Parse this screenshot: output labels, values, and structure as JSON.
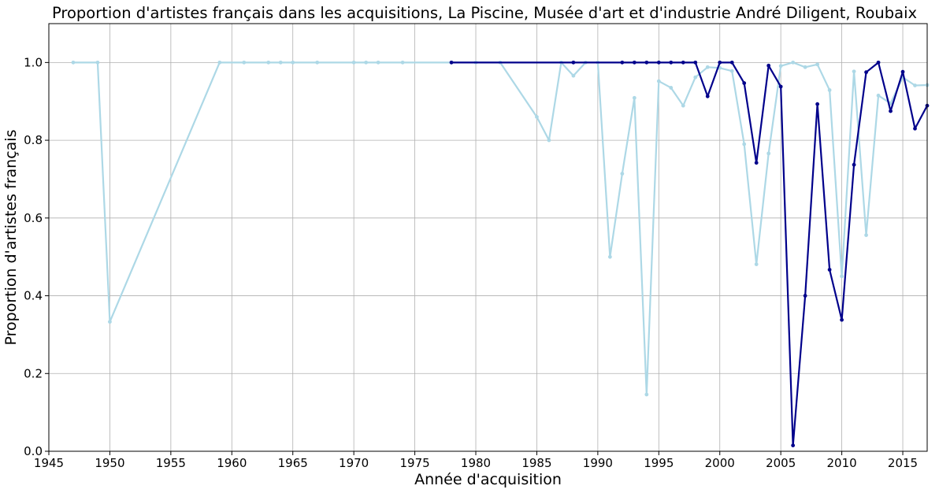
{
  "chart_data": {
    "type": "line",
    "title": "Proportion d'artistes français dans les acquisitions, La Piscine, Musée d'art et d'industrie André Diligent, Roubaix",
    "xlabel": "Année d'acquisition",
    "ylabel": "Proportion d'artistes français",
    "xlim": [
      1945,
      2017
    ],
    "ylim": [
      0,
      1.1
    ],
    "xticks": [
      "1945",
      "1950",
      "1955",
      "1960",
      "1965",
      "1970",
      "1975",
      "1980",
      "1985",
      "1990",
      "1995",
      "2000",
      "2005",
      "2010",
      "2015"
    ],
    "yticks": [
      "0.0",
      "0.2",
      "0.4",
      "0.6",
      "0.8",
      "1.0"
    ],
    "grid": true,
    "series": [
      {
        "color": "#add8e6",
        "points": [
          [
            1947,
            1.0
          ],
          [
            1949,
            1.0
          ],
          [
            1950,
            0.333
          ],
          [
            1959,
            1.0
          ],
          [
            1961,
            1.0
          ],
          [
            1963,
            1.0
          ],
          [
            1964,
            1.0
          ],
          [
            1965,
            1.0
          ],
          [
            1967,
            1.0
          ],
          [
            1970,
            1.0
          ],
          [
            1971,
            1.0
          ],
          [
            1972,
            1.0
          ],
          [
            1974,
            1.0
          ],
          [
            1978,
            1.0
          ],
          [
            1980,
            1.0
          ],
          [
            1982,
            1.0
          ],
          [
            1985,
            0.86
          ],
          [
            1986,
            0.8
          ],
          [
            1987,
            1.0
          ],
          [
            1988,
            0.966
          ],
          [
            1989,
            1.0
          ],
          [
            1990,
            1.0
          ],
          [
            1991,
            0.5
          ],
          [
            1992,
            0.714
          ],
          [
            1993,
            0.909
          ],
          [
            1994,
            0.146
          ],
          [
            1995,
            0.952
          ],
          [
            1996,
            0.935
          ],
          [
            1997,
            0.889
          ],
          [
            1998,
            0.962
          ],
          [
            1999,
            0.988
          ],
          [
            2000,
            0.986
          ],
          [
            2001,
            0.978
          ],
          [
            2002,
            0.79
          ],
          [
            2003,
            0.481
          ],
          [
            2004,
            0.766
          ],
          [
            2005,
            0.991
          ],
          [
            2006,
            1.0
          ],
          [
            2007,
            0.988
          ],
          [
            2008,
            0.995
          ],
          [
            2009,
            0.929
          ],
          [
            2010,
            0.45
          ],
          [
            2011,
            0.977
          ],
          [
            2012,
            0.556
          ],
          [
            2013,
            0.915
          ],
          [
            2014,
            0.895
          ],
          [
            2015,
            0.962
          ],
          [
            2016,
            0.941
          ],
          [
            2017,
            0.942
          ]
        ]
      },
      {
        "color": "#00008b",
        "points": [
          [
            1978,
            1.0
          ],
          [
            1988,
            1.0
          ],
          [
            1992,
            1.0
          ],
          [
            1993,
            1.0
          ],
          [
            1994,
            1.0
          ],
          [
            1995,
            1.0
          ],
          [
            1996,
            1.0
          ],
          [
            1997,
            1.0
          ],
          [
            1998,
            1.0
          ],
          [
            1999,
            0.913
          ],
          [
            2000,
            1.0
          ],
          [
            2001,
            1.0
          ],
          [
            2002,
            0.947
          ],
          [
            2003,
            0.742
          ],
          [
            2004,
            0.992
          ],
          [
            2005,
            0.938
          ],
          [
            2006,
            0.015
          ],
          [
            2007,
            0.4
          ],
          [
            2008,
            0.893
          ],
          [
            2009,
            0.467
          ],
          [
            2010,
            0.338
          ],
          [
            2011,
            0.737
          ],
          [
            2012,
            0.975
          ],
          [
            2013,
            1.0
          ],
          [
            2014,
            0.875
          ],
          [
            2015,
            0.976
          ],
          [
            2016,
            0.83
          ],
          [
            2017,
            0.889
          ]
        ]
      }
    ]
  }
}
